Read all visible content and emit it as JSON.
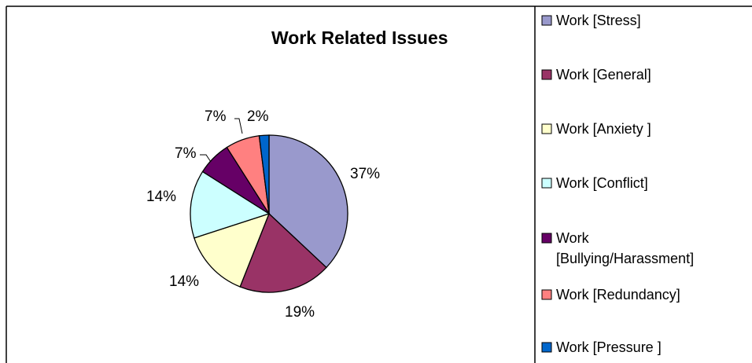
{
  "chart_data": {
    "type": "pie",
    "title": "Work Related Issues",
    "categories": [
      "Work [Stress]",
      "Work [General]",
      "Work [Anxiety ]",
      "Work [Conflict]",
      "Work [Bullying/Harassment]",
      "Work [Redundancy]",
      "Work [Pressure ]"
    ],
    "values": [
      37,
      19,
      14,
      14,
      7,
      7,
      2
    ],
    "data_labels": [
      "37%",
      "19%",
      "14%",
      "14%",
      "7%",
      "7%",
      "2%"
    ],
    "colors": [
      "#9999cc",
      "#993366",
      "#ffffcc",
      "#ccffff",
      "#660066",
      "#ff8080",
      "#0066cc"
    ],
    "legend_position": "right",
    "legend_entries": [
      [
        "Work [Stress]"
      ],
      [
        "Work [General]"
      ],
      [
        "Work [Anxiety ]"
      ],
      [
        "Work [Conflict]"
      ],
      [
        "Work",
        "[Bullying/Harassment]"
      ],
      [
        "Work [Redundancy]"
      ],
      [
        "Work [Pressure ]"
      ]
    ]
  }
}
